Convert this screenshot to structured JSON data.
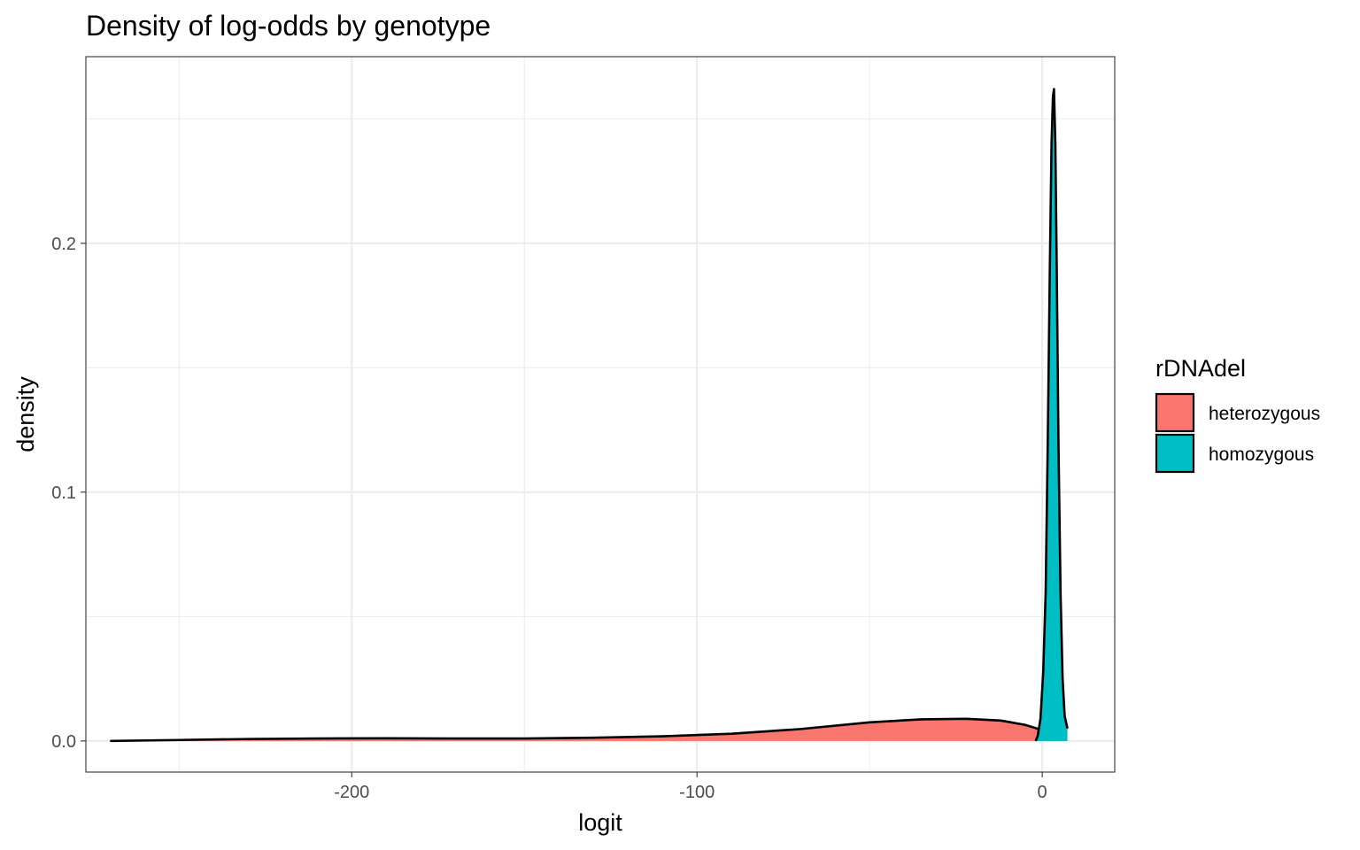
{
  "chart_data": {
    "type": "area",
    "title": "Density of log-odds by genotype",
    "xlabel": "logit",
    "ylabel": "density",
    "xlim": [
      -277,
      21
    ],
    "ylim": [
      -0.0125,
      0.275
    ],
    "x_ticks": [
      -200,
      -100,
      0
    ],
    "x_tick_labels": [
      "-200",
      "-100",
      "0"
    ],
    "x_minor_ticks": [
      -250,
      -150,
      -50
    ],
    "y_ticks": [
      0.0,
      0.1,
      0.2
    ],
    "y_tick_labels": [
      "0.0",
      "0.1",
      "0.2"
    ],
    "y_minor_ticks": [
      0.05,
      0.15,
      0.25
    ],
    "grid": true,
    "legend": {
      "title": "rDNAdel",
      "position": "right",
      "entries": [
        "heterozygous",
        "homozygous"
      ]
    },
    "series": [
      {
        "name": "heterozygous",
        "color": "#F8766D",
        "x": [
          -270,
          -250,
          -230,
          -210,
          -190,
          -170,
          -150,
          -130,
          -110,
          -90,
          -70,
          -50,
          -35,
          -22,
          -12,
          -5,
          -1.5,
          0,
          2,
          5,
          7
        ],
        "y": [
          0.0,
          0.0004,
          0.0008,
          0.001,
          0.0011,
          0.001,
          0.001,
          0.0013,
          0.0019,
          0.0029,
          0.0048,
          0.0075,
          0.0087,
          0.0089,
          0.0082,
          0.0065,
          0.005,
          0.004,
          0.0025,
          0.0015,
          0.0012
        ]
      },
      {
        "name": "homozygous",
        "color": "#00BFC4",
        "x": [
          -1.9,
          -1.3,
          -0.5,
          0.3,
          1.0,
          1.6,
          2.2,
          2.7,
          3.1,
          3.4,
          3.8,
          4.2,
          4.7,
          5.3,
          5.9,
          6.5,
          7.3
        ],
        "y": [
          0.0,
          0.002,
          0.009,
          0.028,
          0.06,
          0.12,
          0.19,
          0.24,
          0.259,
          0.262,
          0.24,
          0.19,
          0.12,
          0.06,
          0.025,
          0.01,
          0.005
        ]
      }
    ]
  }
}
